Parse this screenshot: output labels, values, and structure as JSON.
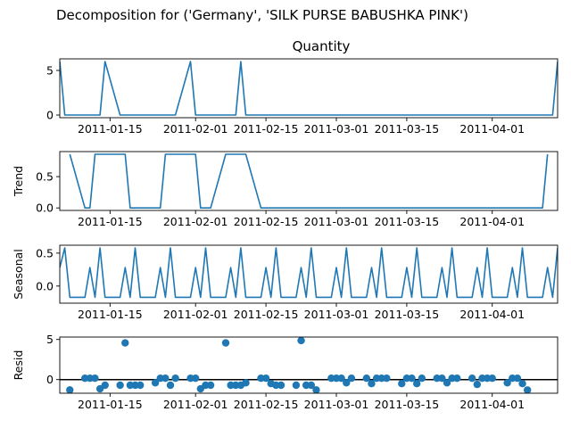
{
  "figure": {
    "suptitle": "Decomposition for ('Germany', 'SILK PURSE BABUSHKA PINK')"
  },
  "chart_data": [
    {
      "type": "line",
      "panel": "observed",
      "title": "Quantity",
      "ylabel": "",
      "x_start": "2011-01-05",
      "x_end": "2011-04-14",
      "x_dates": [
        "2011-01-05",
        "2011-01-06",
        "2011-01-07",
        "2011-01-10",
        "2011-01-11",
        "2011-01-12",
        "2011-01-13",
        "2011-01-14",
        "2011-01-17",
        "2011-01-18",
        "2011-01-19",
        "2011-01-20",
        "2011-01-21",
        "2011-01-24",
        "2011-01-25",
        "2011-01-26",
        "2011-01-27",
        "2011-01-28",
        "2011-01-31",
        "2011-02-01",
        "2011-02-02",
        "2011-02-03",
        "2011-02-04",
        "2011-02-07",
        "2011-02-08",
        "2011-02-09",
        "2011-02-10",
        "2011-02-11",
        "2011-02-14",
        "2011-02-15",
        "2011-02-16",
        "2011-02-17",
        "2011-02-18",
        "2011-02-21",
        "2011-02-22",
        "2011-02-23",
        "2011-02-24",
        "2011-02-25",
        "2011-02-28",
        "2011-03-01",
        "2011-03-02",
        "2011-03-03",
        "2011-03-04",
        "2011-03-07",
        "2011-03-08",
        "2011-03-09",
        "2011-03-10",
        "2011-03-11",
        "2011-03-14",
        "2011-03-15",
        "2011-03-16",
        "2011-03-17",
        "2011-03-18",
        "2011-03-21",
        "2011-03-22",
        "2011-03-23",
        "2011-03-24",
        "2011-03-25",
        "2011-03-28",
        "2011-03-29",
        "2011-03-30",
        "2011-03-31",
        "2011-04-01",
        "2011-04-04",
        "2011-04-05",
        "2011-04-06",
        "2011-04-07",
        "2011-04-08",
        "2011-04-11",
        "2011-04-12",
        "2011-04-13",
        "2011-04-14"
      ],
      "values": [
        6,
        0,
        0,
        0,
        0,
        0,
        0,
        6,
        0,
        0,
        0,
        0,
        0,
        0,
        0,
        0,
        0,
        0,
        6,
        0,
        0,
        0,
        0,
        0,
        0,
        0,
        6,
        0,
        0,
        0,
        0,
        0,
        0,
        0,
        0,
        0,
        0,
        0,
        0,
        0,
        0,
        0,
        0,
        0,
        0,
        0,
        0,
        0,
        0,
        0,
        0,
        0,
        0,
        0,
        0,
        0,
        0,
        0,
        0,
        0,
        0,
        0,
        0,
        0,
        0,
        0,
        0,
        0,
        0,
        0,
        0,
        6
      ],
      "yticks": [
        0,
        5
      ],
      "ylim": [
        -0.3,
        6.3
      ]
    },
    {
      "type": "line",
      "panel": "trend",
      "title": "",
      "ylabel": "Trend",
      "trend_start_index": 2,
      "values": [
        0.857,
        0.0,
        0.0,
        0.857,
        0.857,
        0.857,
        0.857,
        0.857,
        0.0,
        0.0,
        0.0,
        0.0,
        0.0,
        0.857,
        0.857,
        0.857,
        0.857,
        0.857,
        0.0,
        0.0,
        0.0,
        0.857,
        0.857,
        0.857,
        0.857,
        0.857,
        0,
        0,
        0,
        0,
        0,
        0,
        0,
        0,
        0,
        0,
        0,
        0,
        0,
        0,
        0,
        0,
        0,
        0,
        0,
        0,
        0,
        0,
        0,
        0,
        0,
        0,
        0,
        0,
        0,
        0,
        0,
        0,
        0,
        0,
        0,
        0,
        0,
        0,
        0,
        0,
        0,
        0.857
      ],
      "yticks": [
        0.0,
        0.5
      ],
      "ylim": [
        -0.04,
        0.9
      ]
    },
    {
      "type": "line",
      "panel": "seasonal",
      "title": "",
      "ylabel": "Seasonal",
      "pattern": [
        0.58,
        -0.17,
        -0.17,
        0.28,
        -0.17
      ],
      "first_value": 0.28,
      "yticks": [
        0.0,
        0.5
      ],
      "ylim": [
        -0.26,
        0.62
      ]
    },
    {
      "type": "scatter",
      "panel": "resid",
      "title": "",
      "ylabel": "Resid",
      "resid_start_index": 2,
      "values": [
        -1.29,
        0.17,
        0.17,
        0.17,
        -1.15,
        -0.7,
        -0.7,
        4.57,
        -0.7,
        -0.7,
        -0.7,
        -0.4,
        0.17,
        0.17,
        -0.7,
        0.17,
        0.17,
        0.17,
        -1.15,
        -0.7,
        -0.7,
        4.57,
        -0.7,
        -0.7,
        -0.7,
        -0.4,
        0.17,
        0.17,
        -0.5,
        -0.7,
        -0.7,
        -0.7,
        4.86,
        -0.7,
        -0.7,
        -1.29,
        0.17,
        0.17,
        0.17,
        -0.4,
        0.17,
        0.17,
        -0.5,
        0.17,
        0.17,
        0.17,
        -0.5,
        0.17,
        0.17,
        -0.5,
        0.17,
        0.17,
        0.17,
        -0.4,
        0.17,
        0.17,
        0.17,
        -0.6,
        0.17,
        0.17,
        0.17,
        -0.4,
        0.17,
        0.17,
        -0.5,
        -1.3
      ],
      "yticks": [
        0,
        5
      ],
      "ylim": [
        -1.7,
        5.3
      ],
      "baseline": 0
    }
  ],
  "x_axis": {
    "tick_labels": [
      "2011-01-15",
      "2011-02-01",
      "2011-02-15",
      "2011-03-01",
      "2011-03-15",
      "2011-04-01"
    ]
  },
  "colors": {
    "line": "#1f77b4",
    "baseline": "#000000"
  }
}
